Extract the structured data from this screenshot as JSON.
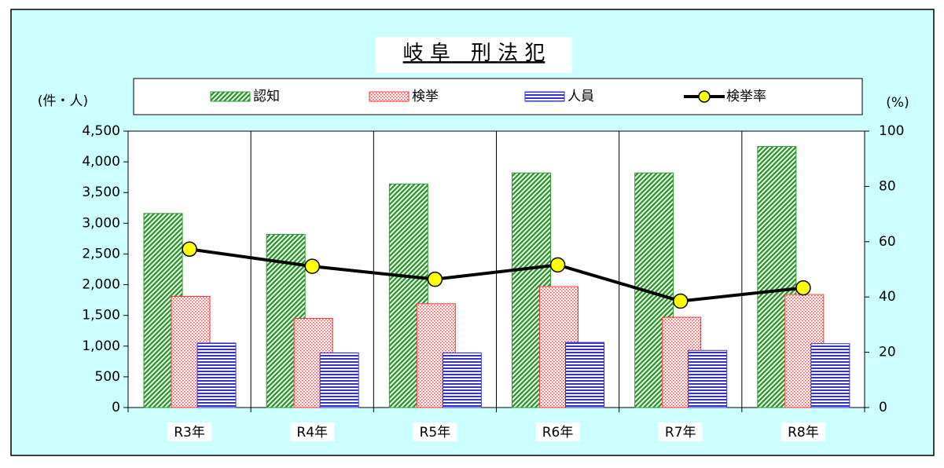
{
  "chart_data": {
    "type": "bar",
    "title": "岐 阜　刑 法 犯",
    "y_axis_label": "(件・人)",
    "y2_axis_label": "(%)",
    "categories": [
      "R3年",
      "R4年",
      "R5年",
      "R6年",
      "R7年",
      "R8年"
    ],
    "series": [
      {
        "name": "認知",
        "color": "#2e9a2e",
        "pattern": "diagonal",
        "values": [
          3160,
          2820,
          3640,
          3820,
          3820,
          4250
        ]
      },
      {
        "name": "検挙",
        "color": "#ff3333",
        "pattern": "dots",
        "values": [
          1810,
          1450,
          1690,
          1970,
          1470,
          1840
        ]
      },
      {
        "name": "人員",
        "color": "#3333cc",
        "pattern": "horizontal",
        "values": [
          1050,
          890,
          890,
          1060,
          930,
          1040
        ]
      },
      {
        "name": "検挙率",
        "type": "line",
        "axis": "y2",
        "color": "#000000",
        "marker_color": "#ffff00",
        "values": [
          57.3,
          51.1,
          46.4,
          51.6,
          38.5,
          43.3
        ]
      }
    ],
    "ylim": [
      0,
      4500
    ],
    "yticks": [
      0,
      500,
      {
        "value": 1000,
        "label": "1,000"
      },
      {
        "value": 1500,
        "label": "1,500"
      },
      {
        "value": 2000,
        "label": "2,000"
      },
      {
        "value": 2500,
        "label": "2,500"
      },
      {
        "value": 3000,
        "label": "3,000"
      },
      {
        "value": 3500,
        "label": "3,500"
      },
      {
        "value": 4000,
        "label": "4,000"
      },
      {
        "value": 4500,
        "label": "4,500"
      }
    ],
    "y2lim": [
      0,
      100
    ],
    "y2ticks": [
      0,
      20,
      40,
      60,
      80,
      100
    ],
    "grid": "vertical"
  }
}
